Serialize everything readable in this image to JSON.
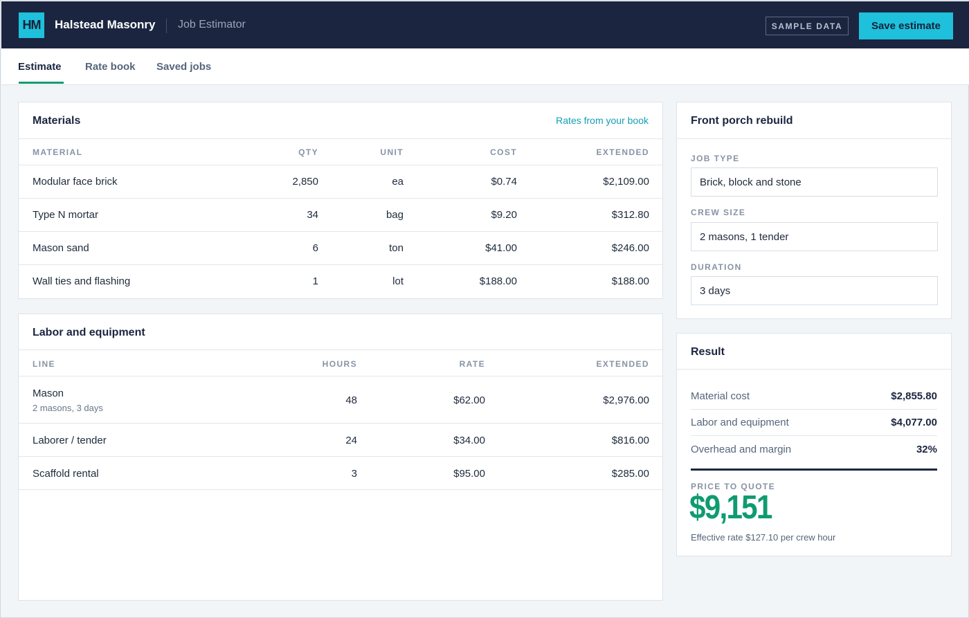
{
  "header": {
    "logo_text": "HM",
    "company": "Halstead Masonry",
    "app_name": "Job Estimator",
    "badge": "SAMPLE DATA",
    "save_label": "Save estimate"
  },
  "tabs": [
    {
      "label": "Estimate",
      "active": true
    },
    {
      "label": "Rate book",
      "active": false
    },
    {
      "label": "Saved jobs",
      "active": false
    }
  ],
  "materials": {
    "title": "Materials",
    "link": "Rates from your book",
    "columns": [
      "MATERIAL",
      "QTY",
      "UNIT",
      "COST",
      "EXTENDED"
    ],
    "rows": [
      {
        "material": "Modular face brick",
        "qty": "2,850",
        "unit": "ea",
        "cost": "$0.74",
        "extended": "$2,109.00"
      },
      {
        "material": "Type N mortar",
        "qty": "34",
        "unit": "bag",
        "cost": "$9.20",
        "extended": "$312.80"
      },
      {
        "material": "Mason sand",
        "qty": "6",
        "unit": "ton",
        "cost": "$41.00",
        "extended": "$246.00"
      },
      {
        "material": "Wall ties and flashing",
        "qty": "1",
        "unit": "lot",
        "cost": "$188.00",
        "extended": "$188.00"
      }
    ]
  },
  "labor": {
    "title": "Labor and equipment",
    "columns": [
      "LINE",
      "HOURS",
      "RATE",
      "EXTENDED"
    ],
    "rows": [
      {
        "line": "Mason",
        "sub": "2 masons, 3 days",
        "hours": "48",
        "rate": "$62.00",
        "extended": "$2,976.00"
      },
      {
        "line": "Laborer / tender",
        "sub": "",
        "hours": "24",
        "rate": "$34.00",
        "extended": "$816.00"
      },
      {
        "line": "Scaffold rental",
        "sub": "",
        "hours": "3",
        "rate": "$95.00",
        "extended": "$285.00"
      }
    ]
  },
  "job": {
    "title": "Front porch rebuild",
    "fields": [
      {
        "label": "JOB TYPE",
        "value": "Brick, block and stone"
      },
      {
        "label": "CREW SIZE",
        "value": "2 masons, 1 tender"
      },
      {
        "label": "DURATION",
        "value": "3 days"
      }
    ]
  },
  "result": {
    "title": "Result",
    "lines": [
      {
        "label": "Material cost",
        "value": "$2,855.80"
      },
      {
        "label": "Labor and equipment",
        "value": "$4,077.00"
      },
      {
        "label": "Overhead and margin",
        "value": "32%"
      }
    ],
    "price_label": "PRICE TO QUOTE",
    "price": "$9,151",
    "effective_rate": "Effective rate $127.10 per crew hour"
  },
  "colors": {
    "navy": "#1b2540",
    "accent_cyan": "#1ec0db",
    "accent_green": "#0f9b70",
    "link": "#129fb5"
  }
}
